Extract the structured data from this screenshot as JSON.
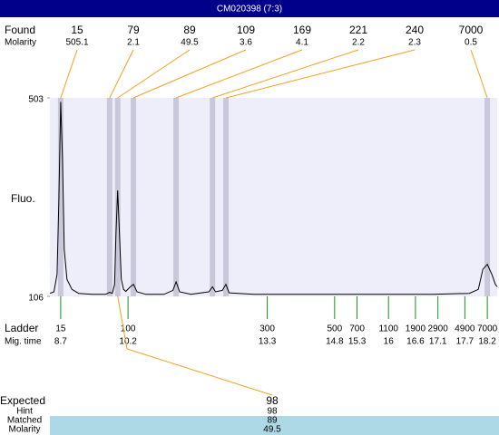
{
  "header": {
    "title": "CM020398 (7:3)"
  },
  "chart_data": {
    "type": "line",
    "ylabel": "Fluo.",
    "color": "#000000",
    "ylim": [
      106,
      503
    ],
    "yticks": [
      106,
      503
    ],
    "xlim": [
      8.46,
      18.42
    ],
    "x": [
      8.46,
      8.55,
      8.62,
      8.66,
      8.7,
      8.74,
      8.78,
      8.84,
      8.95,
      9.1,
      9.4,
      9.7,
      9.79,
      9.85,
      9.9,
      9.93,
      9.97,
      10.01,
      10.05,
      10.1,
      10.15,
      10.25,
      10.32,
      10.4,
      10.6,
      11.0,
      11.2,
      11.27,
      11.35,
      11.6,
      12.0,
      12.08,
      12.15,
      12.3,
      12.38,
      12.45,
      13.0,
      14.0,
      15.0,
      16.0,
      17.0,
      17.8,
      18.0,
      18.1,
      18.2,
      18.3,
      18.38,
      18.42
    ],
    "values": [
      112,
      115,
      150,
      300,
      495,
      380,
      200,
      140,
      120,
      112,
      110,
      110,
      114,
      112,
      130,
      230,
      318,
      230,
      140,
      120,
      116,
      125,
      130,
      115,
      110,
      110,
      118,
      135,
      115,
      110,
      115,
      125,
      115,
      118,
      130,
      113,
      110,
      110,
      110,
      110,
      110,
      112,
      120,
      160,
      170,
      150,
      130,
      125
    ],
    "found": {
      "label": "Found",
      "molarity_label": "Molarity",
      "sizes": [
        15,
        79,
        89,
        109,
        169,
        221,
        240,
        7000
      ],
      "molarity": [
        505.1,
        2.1,
        49.5,
        3.6,
        4.1,
        2.2,
        2.3,
        0.5
      ],
      "mig_times": [
        8.7,
        9.79,
        9.97,
        10.32,
        11.27,
        12.08,
        12.38,
        18.2
      ]
    },
    "ladder": {
      "label": "Ladder",
      "time_label": "Mig. time",
      "sizes": [
        15,
        100,
        300,
        500,
        700,
        1100,
        1900,
        2900,
        4900,
        7000
      ],
      "mig_times": [
        8.7,
        10.2,
        13.3,
        14.8,
        15.3,
        16,
        16.6,
        17.1,
        17.7,
        18.2
      ]
    },
    "expected": {
      "label": "Expected",
      "value": 98,
      "hint_label": "Hint",
      "hint": 98,
      "matched_label": "Matched",
      "matched": 89,
      "molarity_label": "Molarity",
      "molarity": 49.5
    }
  }
}
